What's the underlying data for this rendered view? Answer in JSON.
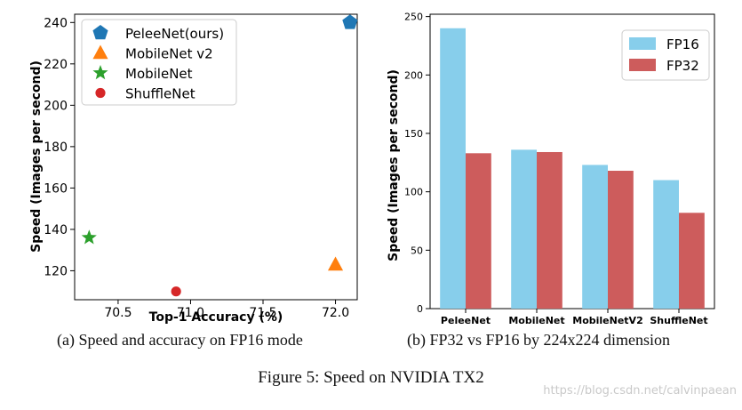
{
  "chart_data": [
    {
      "type": "scatter",
      "title": "",
      "xlabel": "Top-1 Accuracy (%)",
      "ylabel": "Speed (Images per second)",
      "xlim": [
        70.2,
        72.15
      ],
      "ylim": [
        106,
        244
      ],
      "xticks": [
        70.5,
        71.0,
        71.5,
        72.0
      ],
      "xtick_labels": [
        "70.5",
        "71.0",
        "71.5",
        "72.0"
      ],
      "yticks": [
        120,
        140,
        160,
        180,
        200,
        220,
        240
      ],
      "ytick_labels": [
        "120",
        "140",
        "160",
        "180",
        "200",
        "220",
        "240"
      ],
      "legend_position": "top-left",
      "series": [
        {
          "name": "PeleeNet(ours)",
          "marker": "pentagon",
          "color": "#1f77b4",
          "x": 72.1,
          "y": 240
        },
        {
          "name": "MobileNet v2",
          "marker": "triangle",
          "color": "#ff7f0e",
          "x": 72.0,
          "y": 123
        },
        {
          "name": "MobileNet",
          "marker": "star",
          "color": "#2ca02c",
          "x": 70.3,
          "y": 136
        },
        {
          "name": "ShuffleNet",
          "marker": "circle",
          "color": "#d62728",
          "x": 70.9,
          "y": 110
        }
      ]
    },
    {
      "type": "bar",
      "title": "",
      "xlabel": "",
      "ylabel": "Speed (Images per second)",
      "ylim": [
        0,
        252
      ],
      "yticks": [
        0,
        50,
        100,
        150,
        200,
        250
      ],
      "ytick_labels": [
        "0",
        "50",
        "100",
        "150",
        "200",
        "250"
      ],
      "categories": [
        "PeleeNet",
        "MobileNet",
        "MobileNetV2",
        "ShuffleNet"
      ],
      "legend_position": "top-right",
      "series": [
        {
          "name": "FP16",
          "color": "#87ceeb",
          "values": [
            240,
            136,
            123,
            110
          ]
        },
        {
          "name": "FP32",
          "color": "#cd5c5c",
          "values": [
            133,
            134,
            118,
            82
          ]
        }
      ]
    }
  ],
  "captions": {
    "a": "(a) Speed and accuracy on FP16 mode",
    "b": "(b) FP32 vs FP16 by 224x224 dimension",
    "figure": "Figure 5: Speed on NVIDIA TX2"
  },
  "watermark": "https://blog.csdn.net/calvinpaean"
}
